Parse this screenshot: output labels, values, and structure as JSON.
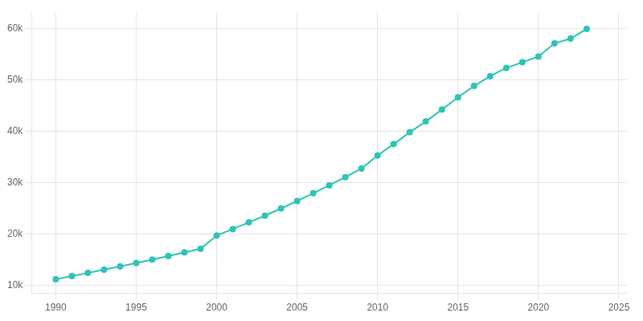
{
  "chart_data": {
    "type": "line",
    "x": [
      1990,
      1991,
      1992,
      1993,
      1994,
      1995,
      1996,
      1997,
      1998,
      1999,
      2000,
      2001,
      2002,
      2003,
      2004,
      2005,
      2006,
      2007,
      2008,
      2009,
      2010,
      2011,
      2012,
      2013,
      2014,
      2015,
      2016,
      2017,
      2018,
      2019,
      2020,
      2021,
      2022,
      2023
    ],
    "values": [
      11257,
      11858,
      12473,
      13101,
      13743,
      14399,
      15070,
      15755,
      16456,
      17173,
      19730,
      21000,
      22300,
      23600,
      25000,
      26450,
      27950,
      29500,
      31100,
      32750,
      35301,
      37500,
      39800,
      41900,
      44200,
      46600,
      48800,
      50700,
      52300,
      53400,
      54516,
      57072,
      58008,
      59892
    ],
    "color": "#2ec4b6",
    "marker": "circle",
    "line_style": "solid",
    "xlim": [
      1988.5,
      2025.5
    ],
    "xticks": [
      1990,
      1995,
      2000,
      2005,
      2010,
      2015,
      2020,
      2025
    ],
    "ylim": [
      8500,
      63000
    ],
    "yticks": [
      {
        "value": 10000,
        "label": "10k"
      },
      {
        "value": 20000,
        "label": "20k"
      },
      {
        "value": 30000,
        "label": "30k"
      },
      {
        "value": 40000,
        "label": "40k"
      },
      {
        "value": 50000,
        "label": "50k"
      },
      {
        "value": 60000,
        "label": "60k"
      }
    ],
    "grid": true
  }
}
